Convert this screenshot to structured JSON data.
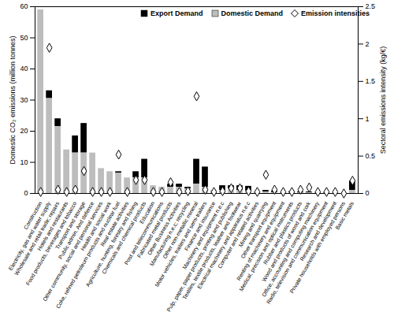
{
  "chart_data": {
    "type": "bar",
    "stacked": true,
    "legend": "top",
    "y_label": "Domestic CO₂ emissions (million tonnes)",
    "y2_label": "Sectoral emissions intensity (kg/€)",
    "categories": [
      "Construction",
      "Electricity, gas and water supply",
      "Wholesale and retail trade; repairs",
      "Hotels and restaurants",
      "Food products, beverages and tobacco",
      "Transport and storage",
      "Public admin. And defence",
      "Other community, social and personal services",
      "Health and social work",
      "Coke, refined petroleum products and nuclear fuel",
      "Real estate activities",
      "Agriculture, hunting, forestry and fishing",
      "Chemicals and chemical products",
      "Education",
      "Post and telecommunications",
      "Fabricated metal products",
      "Other Business Activities",
      "Manufacturing n.e.c; recycling",
      "Other non-metallic mineral",
      "Motor vehicles, trailers and semi-trailers",
      "Finance and insurance",
      "Machinery and equipment n.e.c",
      "Pulp, paper, paper products, printing and publishing",
      "Textiles, textile products, leather and footwear",
      "Electrical machinery and apparatus n.e.c",
      "Computer and related activities",
      "Mining and quarrying",
      "Other transport equipment",
      "Renting of machinery and equipment",
      "Medical, precision and optical instruments",
      "Rubber and plastics products",
      "Wood and products of wood and cork",
      "Office, accounting and computing machinery",
      "Radio, television and communication equipment",
      "Research and development",
      "Private households with employed persons",
      "Basic metals"
    ],
    "series": [
      {
        "name": "Export Demand",
        "type": "bar",
        "color": "#000000",
        "values": [
          0,
          2.5,
          2.5,
          0,
          5.5,
          9.5,
          0,
          0,
          0,
          0.5,
          0,
          2,
          6,
          0,
          0,
          1,
          1,
          0.5,
          8,
          6.5,
          0,
          1.5,
          1,
          1.5,
          1.5,
          0,
          0.5,
          0.5,
          0,
          0.4,
          0.3,
          0.3,
          0.1,
          0.2,
          0,
          0,
          3
        ]
      },
      {
        "name": "Domestic Demand",
        "type": "bar",
        "color": "#bdbdbd",
        "values": [
          59,
          30.5,
          21.5,
          14,
          13,
          13,
          13,
          8,
          7,
          6.5,
          5,
          5,
          5,
          2.5,
          2,
          2,
          2,
          1.5,
          3,
          2,
          1,
          1,
          1.5,
          1,
          0.8,
          0.5,
          0.5,
          0.3,
          0.3,
          0.2,
          0.2,
          0.2,
          0.1,
          0.1,
          0.1,
          0,
          1
        ]
      },
      {
        "name": "Emission intensities",
        "type": "scatter",
        "axis": "y2",
        "marker": "diamond",
        "color": "#ffffff",
        "values": [
          0.02,
          1.95,
          0.05,
          0.02,
          0.05,
          0.3,
          0.02,
          0.02,
          0.02,
          0.52,
          0.02,
          0.18,
          0.18,
          0.02,
          0.02,
          0.15,
          0.02,
          0.03,
          1.3,
          0.05,
          0.02,
          0.03,
          0.07,
          0.07,
          0.03,
          0.02,
          0.25,
          0.05,
          0.02,
          0.02,
          0.05,
          0.08,
          0.02,
          0.02,
          0.02,
          0,
          0.17
        ]
      }
    ],
    "ylim": [
      0,
      60
    ],
    "yticks": [
      0,
      10,
      20,
      30,
      40,
      50,
      60
    ],
    "y2lim": [
      0,
      2.5
    ],
    "y2ticks": [
      0,
      0.5,
      1,
      1.5,
      2,
      2.5
    ],
    "grid": false
  }
}
